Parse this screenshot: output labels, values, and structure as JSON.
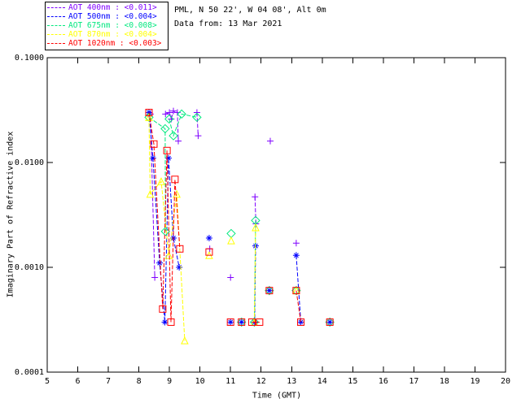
{
  "header": {
    "line1": "PML, N 50 22', W 04 08', Alt 0m",
    "line2": "Data from: 13 Mar 2021"
  },
  "legend": {
    "position": "top-left",
    "items": [
      {
        "label": "AOT  400nm : <0.011>",
        "color": "#7f00ff"
      },
      {
        "label": "AOT  500nm : <0.004>",
        "color": "#0000ff"
      },
      {
        "label": "AOT  675nm : <0.008>",
        "color": "#00e87e"
      },
      {
        "label": "AOT  870nm : <0.004>",
        "color": "#ffff00"
      },
      {
        "label": "AOT 1020nm : <0.003>",
        "color": "#ff0000"
      }
    ]
  },
  "chart_data": {
    "type": "line",
    "title": "",
    "xlabel": "Time (GMT)",
    "ylabel": "Imaginary Part of Refractive index",
    "xlim": [
      5,
      20
    ],
    "ylim": [
      0.0001,
      0.1
    ],
    "x_major_tick_step": 1,
    "grid": false,
    "yticks": [
      {
        "v": 0.1,
        "label": "0.1000"
      },
      {
        "v": 0.01,
        "label": "0.0100"
      },
      {
        "v": 0.001,
        "label": "0.0010"
      },
      {
        "v": 0.0001,
        "label": "0.0001"
      }
    ],
    "series": [
      {
        "name": "AOT 400nm",
        "aot_value": "<0.011>",
        "color": "#7f00ff",
        "marker": "plus",
        "points": [
          [
            8.33,
            0.028
          ],
          [
            8.38,
            0.029
          ],
          [
            8.52,
            0.0008
          ],
          null,
          [
            8.87,
            0.029
          ],
          [
            9.0,
            0.03
          ],
          [
            9.06,
            0.026
          ],
          [
            9.13,
            0.031
          ],
          [
            9.26,
            0.03
          ],
          [
            9.29,
            0.016
          ],
          null,
          [
            9.9,
            0.03
          ],
          [
            9.94,
            0.018
          ],
          null,
          [
            10.32,
            0.0015
          ],
          null,
          [
            11.0,
            0.0008
          ],
          null,
          [
            11.8,
            0.0047
          ],
          [
            11.83,
            0.0026
          ],
          null,
          [
            12.3,
            0.016
          ],
          null,
          [
            13.15,
            0.0017
          ]
        ]
      },
      {
        "name": "AOT 500nm",
        "aot_value": "<0.004>",
        "color": "#0000ff",
        "marker": "asterisk",
        "points": [
          [
            8.33,
            0.03
          ],
          [
            8.46,
            0.011
          ],
          [
            8.68,
            0.0011
          ],
          [
            8.85,
            0.0003
          ],
          [
            8.97,
            0.011
          ],
          [
            9.13,
            0.0019
          ],
          [
            9.32,
            0.001
          ],
          null,
          [
            10.3,
            0.0019
          ],
          null,
          [
            11.0,
            0.0003
          ],
          null,
          [
            11.36,
            0.0003
          ],
          null,
          [
            11.82,
            0.0016
          ],
          [
            11.79,
            0.0003
          ],
          null,
          [
            12.27,
            0.0006
          ],
          null,
          [
            13.15,
            0.0013
          ],
          [
            13.3,
            0.0003
          ],
          null,
          [
            14.25,
            0.0003
          ]
        ]
      },
      {
        "name": "AOT 675nm",
        "aot_value": "<0.008>",
        "color": "#00e87e",
        "marker": "diamond",
        "points": [
          [
            8.33,
            0.027
          ],
          [
            8.86,
            0.021
          ],
          [
            8.87,
            0.0022
          ],
          null,
          [
            8.99,
            0.026
          ],
          [
            9.13,
            0.018
          ],
          [
            9.4,
            0.029
          ],
          [
            9.9,
            0.027
          ],
          null,
          [
            11.02,
            0.0021
          ],
          null,
          [
            11.82,
            0.0028
          ],
          [
            11.78,
            0.0003
          ],
          null,
          [
            11.36,
            0.0003
          ],
          null,
          [
            12.27,
            0.0006
          ],
          null,
          [
            13.15,
            0.0006
          ],
          null,
          [
            14.25,
            0.0003
          ]
        ]
      },
      {
        "name": "AOT 870nm",
        "aot_value": "<0.004>",
        "color": "#ffff00",
        "marker": "triangle",
        "points": [
          [
            8.33,
            0.027
          ],
          [
            8.37,
            0.005
          ],
          [
            8.73,
            0.0066
          ],
          [
            8.98,
            0.0013
          ],
          [
            9.24,
            0.005
          ],
          [
            9.5,
            0.0002
          ],
          null,
          [
            10.3,
            0.0013
          ],
          null,
          [
            11.02,
            0.0018
          ],
          null,
          [
            11.82,
            0.0024
          ],
          [
            11.78,
            0.0003
          ],
          null,
          [
            13.15,
            0.0006
          ]
        ]
      },
      {
        "name": "AOT 1020nm",
        "aot_value": "<0.003>",
        "color": "#ff0000",
        "marker": "square",
        "points": [
          [
            8.33,
            0.03
          ],
          [
            8.49,
            0.015
          ],
          [
            8.78,
            0.0004
          ],
          [
            8.92,
            0.013
          ],
          [
            9.05,
            0.0003
          ],
          [
            9.18,
            0.0069
          ],
          [
            9.34,
            0.0015
          ],
          null,
          [
            10.3,
            0.0014
          ],
          null,
          [
            11.0,
            0.0003
          ],
          null,
          [
            11.36,
            0.0003
          ],
          null,
          [
            11.7,
            0.0003
          ],
          [
            11.95,
            0.0003
          ],
          null,
          [
            12.27,
            0.0006
          ],
          null,
          [
            13.15,
            0.0006
          ],
          [
            13.3,
            0.0003
          ],
          null,
          [
            14.25,
            0.0003
          ]
        ]
      }
    ]
  }
}
